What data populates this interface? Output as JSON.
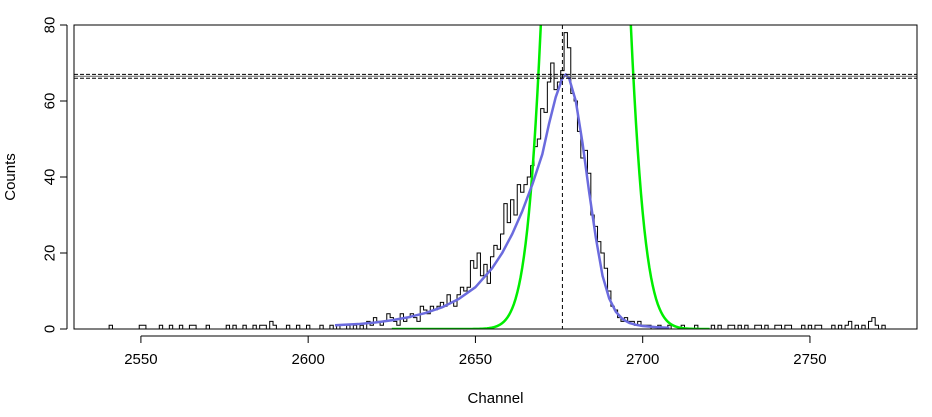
{
  "chart_data": {
    "type": "line",
    "xlabel": "Channel",
    "ylabel": "Counts",
    "xlim": [
      2530,
      2782
    ],
    "ylim": [
      0,
      80
    ],
    "x_ticks": [
      2550,
      2600,
      2650,
      2700,
      2750
    ],
    "y_ticks": [
      0,
      20,
      40,
      60,
      80
    ],
    "colors": {
      "histogram": "#000000",
      "fit": "#6b6bde",
      "gaussian": "#00ee00",
      "reference": "#000000"
    },
    "histogram": {
      "bin_width": 1,
      "nonzero_counts": [
        [
          2541,
          1
        ],
        [
          2550,
          1
        ],
        [
          2551,
          1
        ],
        [
          2556,
          1
        ],
        [
          2559,
          1
        ],
        [
          2562,
          1
        ],
        [
          2565,
          1
        ],
        [
          2566,
          1
        ],
        [
          2570,
          1
        ],
        [
          2576,
          1
        ],
        [
          2578,
          1
        ],
        [
          2581,
          1
        ],
        [
          2584,
          1
        ],
        [
          2586,
          1
        ],
        [
          2587,
          1
        ],
        [
          2589,
          2
        ],
        [
          2590,
          1
        ],
        [
          2594,
          1
        ],
        [
          2597,
          1
        ],
        [
          2600,
          1
        ],
        [
          2604,
          1
        ],
        [
          2607,
          1
        ],
        [
          2609,
          1
        ],
        [
          2612,
          1
        ],
        [
          2614,
          1
        ],
        [
          2616,
          1
        ],
        [
          2618,
          2
        ],
        [
          2619,
          1
        ],
        [
          2620,
          3
        ],
        [
          2621,
          2
        ],
        [
          2622,
          1
        ],
        [
          2623,
          2
        ],
        [
          2624,
          4
        ],
        [
          2625,
          3
        ],
        [
          2626,
          2
        ],
        [
          2627,
          1
        ],
        [
          2628,
          4
        ],
        [
          2629,
          2
        ],
        [
          2630,
          3
        ],
        [
          2631,
          4
        ],
        [
          2632,
          3
        ],
        [
          2633,
          2
        ],
        [
          2634,
          6
        ],
        [
          2635,
          5
        ],
        [
          2636,
          4
        ],
        [
          2637,
          6
        ],
        [
          2638,
          5
        ],
        [
          2639,
          6
        ],
        [
          2640,
          7
        ],
        [
          2641,
          6
        ],
        [
          2642,
          9
        ],
        [
          2643,
          7
        ],
        [
          2644,
          6
        ],
        [
          2645,
          9
        ],
        [
          2646,
          11
        ],
        [
          2647,
          10
        ],
        [
          2648,
          11
        ],
        [
          2649,
          18
        ],
        [
          2650,
          16
        ],
        [
          2651,
          20
        ],
        [
          2652,
          14
        ],
        [
          2653,
          17
        ],
        [
          2654,
          12
        ],
        [
          2655,
          19
        ],
        [
          2656,
          22
        ],
        [
          2657,
          21
        ],
        [
          2658,
          25
        ],
        [
          2659,
          33
        ],
        [
          2660,
          28
        ],
        [
          2661,
          34
        ],
        [
          2662,
          30
        ],
        [
          2663,
          38
        ],
        [
          2664,
          36
        ],
        [
          2665,
          38
        ],
        [
          2666,
          40
        ],
        [
          2667,
          43
        ],
        [
          2668,
          48
        ],
        [
          2669,
          50
        ],
        [
          2670,
          58
        ],
        [
          2671,
          57
        ],
        [
          2672,
          65
        ],
        [
          2673,
          70
        ],
        [
          2674,
          63
        ],
        [
          2675,
          65
        ],
        [
          2676,
          68
        ],
        [
          2677,
          78
        ],
        [
          2678,
          74
        ],
        [
          2679,
          62
        ],
        [
          2680,
          60
        ],
        [
          2681,
          52
        ],
        [
          2682,
          45
        ],
        [
          2683,
          47
        ],
        [
          2684,
          41
        ],
        [
          2685,
          30
        ],
        [
          2686,
          27
        ],
        [
          2687,
          23
        ],
        [
          2688,
          20
        ],
        [
          2689,
          16
        ],
        [
          2690,
          10
        ],
        [
          2691,
          6
        ],
        [
          2692,
          5
        ],
        [
          2693,
          3
        ],
        [
          2694,
          2
        ],
        [
          2695,
          3
        ],
        [
          2696,
          2
        ],
        [
          2697,
          2
        ],
        [
          2698,
          1
        ],
        [
          2699,
          2
        ],
        [
          2700,
          1
        ],
        [
          2701,
          1
        ],
        [
          2702,
          1
        ],
        [
          2705,
          1
        ],
        [
          2708,
          1
        ],
        [
          2712,
          1
        ],
        [
          2716,
          1
        ],
        [
          2721,
          1
        ],
        [
          2723,
          1
        ],
        [
          2726,
          1
        ],
        [
          2727,
          1
        ],
        [
          2729,
          1
        ],
        [
          2731,
          1
        ],
        [
          2734,
          1
        ],
        [
          2735,
          1
        ],
        [
          2737,
          1
        ],
        [
          2740,
          1
        ],
        [
          2741,
          1
        ],
        [
          2743,
          1
        ],
        [
          2744,
          1
        ],
        [
          2748,
          1
        ],
        [
          2750,
          1
        ],
        [
          2752,
          1
        ],
        [
          2753,
          1
        ],
        [
          2757,
          1
        ],
        [
          2759,
          1
        ],
        [
          2761,
          1
        ],
        [
          2762,
          2
        ],
        [
          2764,
          1
        ],
        [
          2766,
          1
        ],
        [
          2768,
          2
        ],
        [
          2769,
          3
        ],
        [
          2770,
          1
        ],
        [
          2772,
          1
        ]
      ]
    },
    "fit_curve": {
      "x": [
        2608,
        2615,
        2620,
        2625,
        2630,
        2635,
        2640,
        2645,
        2650,
        2655,
        2658,
        2661,
        2664,
        2667,
        2670,
        2672,
        2674,
        2676,
        2677,
        2678,
        2680,
        2682,
        2684,
        2686,
        2688,
        2690,
        2692,
        2694,
        2696,
        2698,
        2700,
        2704,
        2708
      ],
      "y": [
        1,
        1.3,
        1.7,
        2.3,
        3.1,
        4.2,
        5.7,
        7.9,
        11,
        16,
        20,
        25,
        31,
        38,
        46,
        54,
        61,
        66,
        67,
        66,
        60,
        49,
        36,
        24,
        14,
        8,
        4.5,
        2.6,
        1.6,
        1.1,
        0.8,
        0.5,
        0.3
      ]
    },
    "gaussian": {
      "mean": 2683,
      "sigma": 7.5,
      "amplitude": 400,
      "x_start": 2625,
      "x_end": 2720
    },
    "vertical_line_x": 2676,
    "horizontal_band": [
      66,
      67
    ]
  }
}
